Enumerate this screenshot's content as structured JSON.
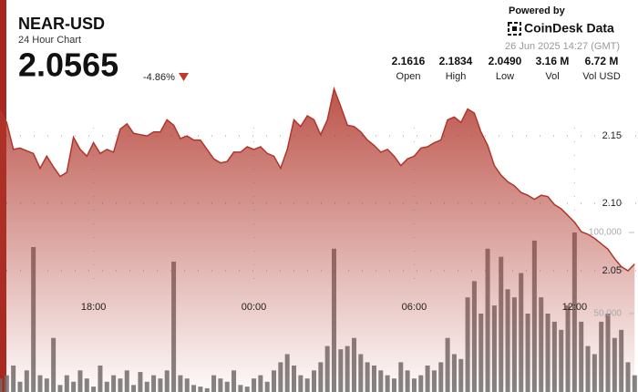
{
  "header": {
    "symbol": "NEAR-USD",
    "subtitle": "24 Hour Chart",
    "price": "2.0565",
    "change": "-4.86%",
    "powered_by": "Powered by",
    "brand": "CoinDesk Data",
    "timestamp": "26 Jun 2025 14:27 (GMT)",
    "stats": [
      {
        "value": "2.1616",
        "label": "Open"
      },
      {
        "value": "2.1834",
        "label": "High"
      },
      {
        "value": "2.0490",
        "label": "Low"
      },
      {
        "value": "3.16 M",
        "label": "Vol"
      },
      {
        "value": "6.72 M",
        "label": "Vol USD"
      }
    ]
  },
  "chart_data": {
    "type": "line",
    "x": [
      0,
      1,
      2,
      3,
      4,
      5,
      6,
      7,
      8,
      9,
      10,
      11,
      12,
      13,
      14,
      15,
      16,
      17,
      18,
      19,
      20,
      21,
      22,
      23,
      24,
      25,
      26,
      27,
      28,
      29,
      30,
      31,
      32,
      33,
      34,
      35,
      36,
      37,
      38,
      39,
      40,
      41,
      42,
      43,
      44,
      45,
      46,
      47,
      48,
      49,
      50,
      51,
      52,
      53,
      54,
      55,
      56,
      57,
      58,
      59,
      60,
      61,
      62,
      63,
      64,
      65,
      66,
      67,
      68,
      69,
      70,
      71,
      72,
      73,
      74,
      75,
      76,
      77,
      78,
      79,
      80,
      81,
      82,
      83,
      84,
      85,
      86,
      87,
      88,
      89,
      90,
      91,
      92,
      93,
      94,
      95
    ],
    "xlim": [
      0,
      95.5
    ],
    "xticks": [
      {
        "value": 14,
        "label": "18:00"
      },
      {
        "value": 38,
        "label": "00:00"
      },
      {
        "value": 62,
        "label": "06:00"
      },
      {
        "value": 86,
        "label": "12:00"
      }
    ],
    "ylim": [
      1.96,
      2.19
    ],
    "yticks": [
      {
        "value": 2.05,
        "label": "2.05"
      },
      {
        "value": 2.1,
        "label": "2.10"
      },
      {
        "value": 2.15,
        "label": "2.15"
      }
    ],
    "y2lim": [
      0,
      120000
    ],
    "y2ticks": [
      {
        "value": 50000,
        "label": "50,000"
      },
      {
        "value": 100000,
        "label": "100,000"
      }
    ],
    "grid": true,
    "series": [
      {
        "color": "#b0362b",
        "values": [
          2.169,
          2.16,
          2.14,
          2.141,
          2.139,
          2.137,
          2.126,
          2.135,
          2.127,
          2.12,
          2.123,
          2.149,
          2.14,
          2.135,
          2.145,
          2.137,
          2.14,
          2.138,
          2.155,
          2.159,
          2.152,
          2.151,
          2.15,
          2.153,
          2.153,
          2.162,
          2.158,
          2.148,
          2.15,
          2.147,
          2.147,
          2.14,
          2.133,
          2.13,
          2.131,
          2.138,
          2.138,
          2.142,
          2.14,
          2.142,
          2.137,
          2.135,
          2.126,
          2.14,
          2.162,
          2.157,
          2.165,
          2.162,
          2.151,
          2.162,
          2.185,
          2.172,
          2.158,
          2.157,
          2.153,
          2.147,
          2.143,
          2.138,
          2.14,
          2.135,
          2.128,
          2.133,
          2.135,
          2.141,
          2.142,
          2.145,
          2.147,
          2.162,
          2.164,
          2.16,
          2.17,
          2.167,
          2.153,
          2.143,
          2.128,
          2.121,
          2.116,
          2.113,
          2.108,
          2.106,
          2.103,
          2.106,
          2.105,
          2.099,
          2.096,
          2.091,
          2.086,
          2.079,
          2.077,
          2.074,
          2.07,
          2.066,
          2.059,
          2.053,
          2.05,
          2.055
        ]
      },
      {
        "type": "bar",
        "axis": "y2",
        "color": "#6e6e6e",
        "values": [
          10000,
          12000,
          18000,
          8000,
          15000,
          91000,
          12000,
          10000,
          35000,
          6000,
          12000,
          8000,
          15000,
          10000,
          5000,
          18000,
          8000,
          12000,
          10000,
          15000,
          6000,
          14000,
          8000,
          12000,
          10000,
          15000,
          82000,
          12000,
          10000,
          6000,
          5000,
          4000,
          12000,
          10000,
          8000,
          15000,
          6000,
          5000,
          10000,
          12000,
          8000,
          15000,
          20000,
          25000,
          18000,
          12000,
          10000,
          15000,
          20000,
          30000,
          90000,
          28000,
          30000,
          35000,
          25000,
          20000,
          18000,
          15000,
          12000,
          10000,
          20000,
          15000,
          10000,
          12000,
          18000,
          15000,
          20000,
          35000,
          25000,
          22000,
          60000,
          70000,
          50000,
          90000,
          55000,
          85000,
          65000,
          60000,
          75000,
          50000,
          95000,
          60000,
          50000,
          45000,
          40000,
          55000,
          100000,
          45000,
          30000,
          25000,
          45000,
          50000,
          35000,
          40000,
          20000,
          12000
        ]
      }
    ]
  }
}
